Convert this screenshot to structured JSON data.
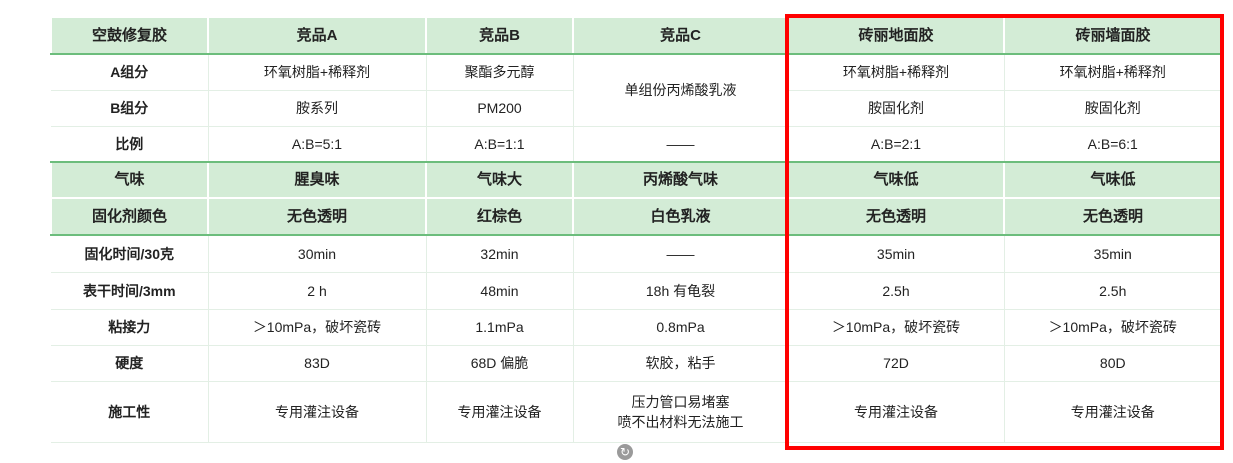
{
  "header": [
    "空鼓修复胶",
    "竞品A",
    "竞品B",
    "竞品C",
    "砖丽地面胶",
    "砖丽墙面胶"
  ],
  "rows": [
    {
      "label": "A组分",
      "cells": [
        "环氧树脂+稀释剂",
        "聚酯多元醇",
        "单组份丙烯酸乳液",
        "环氧树脂+稀释剂",
        "环氧树脂+稀释剂"
      ],
      "highlight": false
    },
    {
      "label": "B组分",
      "cells": [
        "胺系列",
        "PM200",
        null,
        "胺固化剂",
        "胺固化剂"
      ],
      "highlight": false
    },
    {
      "label": "比例",
      "cells": [
        "A:B=5:1",
        "A:B=1:1",
        "——",
        "A:B=2:1",
        "A:B=6:1"
      ],
      "highlight": false
    },
    {
      "label": "气味",
      "cells": [
        "腥臭味",
        "气味大",
        "丙烯酸气味",
        "气味低",
        "气味低"
      ],
      "highlight": true
    },
    {
      "label": "固化剂颜色",
      "cells": [
        "无色透明",
        "红棕色",
        "白色乳液",
        "无色透明",
        "无色透明"
      ],
      "highlight": true
    },
    {
      "label": "固化时间/30克",
      "cells": [
        "30min",
        "32min",
        "——",
        "35min",
        "35min"
      ],
      "highlight": false
    },
    {
      "label": "表干时间/3mm",
      "cells": [
        "2 h",
        "48min",
        "18h 有龟裂",
        "2.5h",
        "2.5h"
      ],
      "highlight": false
    },
    {
      "label": "粘接力",
      "cells": [
        "＞10mPa，破坏瓷砖",
        "1.1mPa",
        "0.8mPa",
        "＞10mPa，破坏瓷砖",
        "＞10mPa，破坏瓷砖"
      ],
      "highlight": false
    },
    {
      "label": "硬度",
      "cells": [
        "83D",
        "68D 偏脆",
        "软胶，粘手",
        "72D",
        "80D"
      ],
      "highlight": false
    },
    {
      "label": "施工性",
      "cells": [
        "专用灌注设备",
        "专用灌注设备",
        "压力管口易堵塞\n喷不出材料无法施工",
        "专用灌注设备",
        "专用灌注设备"
      ],
      "highlight": false
    }
  ],
  "colors": {
    "header_bg": "#d3ecd6",
    "accent_line": "#6cbd7c",
    "highlight_box": "#ff0000"
  },
  "icons": {
    "bottom": "refresh-icon"
  }
}
